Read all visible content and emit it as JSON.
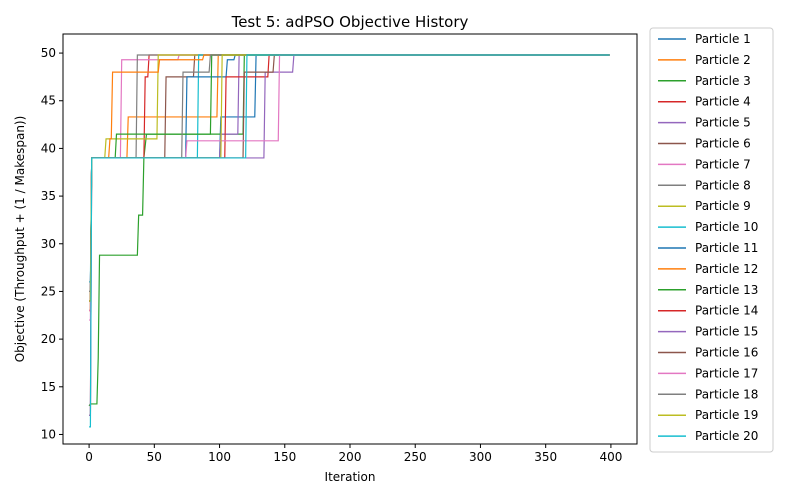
{
  "chart_data": {
    "type": "line",
    "title": "Test 5: adPSO Objective History",
    "xlabel": "Iteration",
    "ylabel": "Objective (Throughput + (1 / Makespan))",
    "xlim": [
      -20,
      420
    ],
    "ylim": [
      9,
      52
    ],
    "xticks": [
      0,
      50,
      100,
      150,
      200,
      250,
      300,
      350,
      400
    ],
    "yticks": [
      10,
      15,
      20,
      25,
      30,
      35,
      40,
      45,
      50
    ],
    "grid": false,
    "legend_position": "outside-right",
    "series": [
      {
        "name": "Particle 1",
        "color": "#1f77b4",
        "points": [
          [
            0,
            25
          ],
          [
            1,
            25
          ],
          [
            2,
            39
          ],
          [
            100,
            39
          ],
          [
            101,
            43.3
          ],
          [
            127,
            43.3
          ],
          [
            128,
            49.8
          ],
          [
            399,
            49.8
          ]
        ]
      },
      {
        "name": "Particle 2",
        "color": "#ff7f0e",
        "points": [
          [
            0,
            24
          ],
          [
            1,
            24
          ],
          [
            2,
            39
          ],
          [
            29,
            39
          ],
          [
            30,
            43.3
          ],
          [
            98,
            43.3
          ],
          [
            99,
            49.8
          ],
          [
            399,
            49.8
          ]
        ]
      },
      {
        "name": "Particle 3",
        "color": "#2ca02c",
        "points": [
          [
            0,
            13
          ],
          [
            1,
            13.2
          ],
          [
            6,
            13.2
          ],
          [
            7,
            18
          ],
          [
            8,
            28.8
          ],
          [
            37,
            28.8
          ],
          [
            38,
            33
          ],
          [
            41,
            33
          ],
          [
            42,
            39
          ],
          [
            44,
            41.5
          ],
          [
            118,
            41.5
          ],
          [
            119,
            49.8
          ],
          [
            399,
            49.8
          ]
        ]
      },
      {
        "name": "Particle 4",
        "color": "#d62728",
        "points": [
          [
            0,
            12
          ],
          [
            1,
            12
          ],
          [
            2,
            39
          ],
          [
            42,
            39
          ],
          [
            43,
            47.5
          ],
          [
            45,
            47.5
          ],
          [
            46,
            49.8
          ],
          [
            399,
            49.8
          ]
        ]
      },
      {
        "name": "Particle 5",
        "color": "#9467bd",
        "points": [
          [
            0,
            12
          ],
          [
            1,
            12
          ],
          [
            2,
            39
          ],
          [
            100,
            39
          ],
          [
            101,
            41.5
          ],
          [
            114,
            41.5
          ],
          [
            115,
            49.8
          ],
          [
            399,
            49.8
          ]
        ]
      },
      {
        "name": "Particle 6",
        "color": "#8c564b",
        "points": [
          [
            0,
            23
          ],
          [
            1,
            23
          ],
          [
            2,
            39
          ],
          [
            58,
            39
          ],
          [
            59,
            47.5
          ],
          [
            80,
            47.5
          ],
          [
            81,
            49.8
          ],
          [
            399,
            49.8
          ]
        ]
      },
      {
        "name": "Particle 7",
        "color": "#e377c2",
        "points": [
          [
            0,
            22
          ],
          [
            1,
            22
          ],
          [
            2,
            39
          ],
          [
            24,
            39
          ],
          [
            25,
            49.3
          ],
          [
            68,
            49.3
          ],
          [
            69,
            49.8
          ],
          [
            399,
            49.8
          ]
        ]
      },
      {
        "name": "Particle 8",
        "color": "#7f7f7f",
        "points": [
          [
            0,
            24
          ],
          [
            1,
            24
          ],
          [
            2,
            39
          ],
          [
            36,
            39
          ],
          [
            37,
            49.8
          ],
          [
            399,
            49.8
          ]
        ]
      },
      {
        "name": "Particle 9",
        "color": "#bcbd22",
        "points": [
          [
            0,
            23
          ],
          [
            1,
            23
          ],
          [
            2,
            39
          ],
          [
            12,
            39
          ],
          [
            13,
            41
          ],
          [
            52,
            41
          ],
          [
            53,
            49.8
          ],
          [
            399,
            49.8
          ]
        ]
      },
      {
        "name": "Particle 10",
        "color": "#17becf",
        "points": [
          [
            0,
            26
          ],
          [
            1,
            26
          ],
          [
            2,
            39
          ],
          [
            83,
            39
          ],
          [
            84,
            49.8
          ],
          [
            399,
            49.8
          ]
        ]
      },
      {
        "name": "Particle 11",
        "color": "#1f77b4",
        "points": [
          [
            0,
            25
          ],
          [
            1,
            25
          ],
          [
            2,
            39
          ],
          [
            74,
            39
          ],
          [
            75,
            47.5
          ],
          [
            105,
            47.5
          ],
          [
            106,
            49.3
          ],
          [
            111,
            49.3
          ],
          [
            112,
            49.8
          ],
          [
            399,
            49.8
          ]
        ]
      },
      {
        "name": "Particle 12",
        "color": "#ff7f0e",
        "points": [
          [
            0,
            23
          ],
          [
            1,
            23
          ],
          [
            2,
            39
          ],
          [
            15,
            39
          ],
          [
            16,
            41
          ],
          [
            17,
            41
          ],
          [
            18,
            48
          ],
          [
            53,
            48
          ],
          [
            54,
            49.3
          ],
          [
            87,
            49.3
          ],
          [
            88,
            49.8
          ],
          [
            399,
            49.8
          ]
        ]
      },
      {
        "name": "Particle 13",
        "color": "#2ca02c",
        "points": [
          [
            0,
            24
          ],
          [
            1,
            24
          ],
          [
            2,
            39
          ],
          [
            20,
            39
          ],
          [
            21,
            41.5
          ],
          [
            93,
            41.5
          ],
          [
            94,
            49.8
          ],
          [
            399,
            49.8
          ]
        ]
      },
      {
        "name": "Particle 14",
        "color": "#d62728",
        "points": [
          [
            0,
            24
          ],
          [
            1,
            24
          ],
          [
            2,
            39
          ],
          [
            104,
            39
          ],
          [
            105,
            47.5
          ],
          [
            137,
            47.5
          ],
          [
            138,
            49.8
          ],
          [
            399,
            49.8
          ]
        ]
      },
      {
        "name": "Particle 15",
        "color": "#9467bd",
        "points": [
          [
            0,
            25
          ],
          [
            1,
            25
          ],
          [
            2,
            39
          ],
          [
            134,
            39
          ],
          [
            135,
            48
          ],
          [
            156,
            48
          ],
          [
            157,
            49.8
          ],
          [
            399,
            49.8
          ]
        ]
      },
      {
        "name": "Particle 16",
        "color": "#8c564b",
        "points": [
          [
            0,
            24
          ],
          [
            1,
            24
          ],
          [
            2,
            39
          ],
          [
            118,
            39
          ],
          [
            119,
            48
          ],
          [
            141,
            48
          ],
          [
            142,
            49.8
          ],
          [
            399,
            49.8
          ]
        ]
      },
      {
        "name": "Particle 17",
        "color": "#e377c2",
        "points": [
          [
            0,
            23
          ],
          [
            1,
            23
          ],
          [
            2,
            39
          ],
          [
            74,
            39
          ],
          [
            75,
            40.8
          ],
          [
            145,
            40.8
          ],
          [
            146,
            49.8
          ],
          [
            399,
            49.8
          ]
        ]
      },
      {
        "name": "Particle 18",
        "color": "#7f7f7f",
        "points": [
          [
            0,
            25
          ],
          [
            1,
            25
          ],
          [
            2,
            39
          ],
          [
            71,
            39
          ],
          [
            72,
            48
          ],
          [
            92,
            48
          ],
          [
            93,
            49.8
          ],
          [
            399,
            49.8
          ]
        ]
      },
      {
        "name": "Particle 19",
        "color": "#bcbd22",
        "points": [
          [
            0,
            24
          ],
          [
            1,
            24
          ],
          [
            2,
            39
          ],
          [
            101,
            39
          ],
          [
            102,
            49.8
          ],
          [
            399,
            49.8
          ]
        ]
      },
      {
        "name": "Particle 20",
        "color": "#17becf",
        "points": [
          [
            0,
            10.8
          ],
          [
            1,
            10.8
          ],
          [
            2,
            39
          ],
          [
            120,
            39
          ],
          [
            121,
            49.8
          ],
          [
            399,
            49.8
          ]
        ]
      }
    ]
  }
}
